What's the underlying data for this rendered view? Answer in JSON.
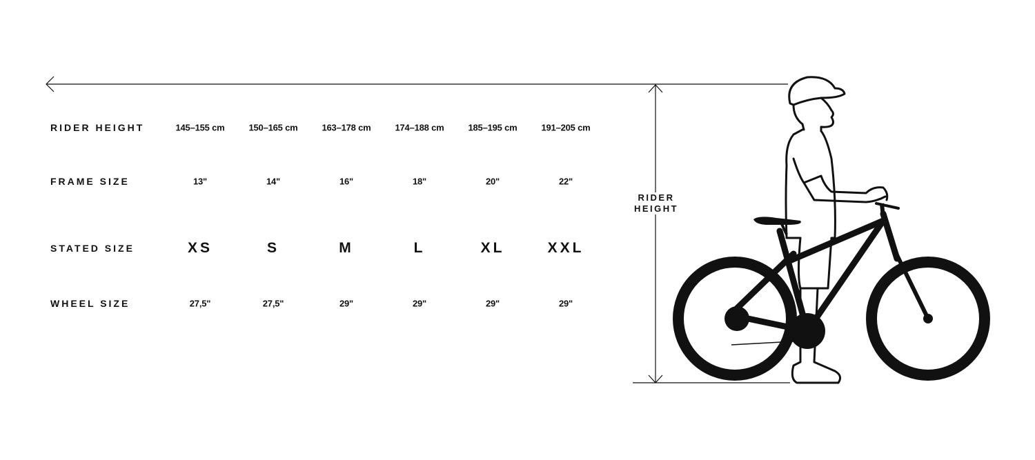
{
  "rows": [
    {
      "label": "RIDER HEIGHT",
      "values": [
        "145–155 cm",
        "150–165 cm",
        "163–178 cm",
        "174–188 cm",
        "185–195 cm",
        "191–205 cm"
      ]
    },
    {
      "label": "FRAME SIZE",
      "values": [
        "13\"",
        "14\"",
        "16\"",
        "18\"",
        "20\"",
        "22\""
      ]
    },
    {
      "label": "STATED SIZE",
      "values": [
        "XS",
        "S",
        "M",
        "L",
        "XL",
        "XXL"
      ]
    },
    {
      "label": "WHEEL SIZE",
      "values": [
        "27,5\"",
        "27,5\"",
        "29\"",
        "29\"",
        "29\"",
        "29\""
      ]
    }
  ],
  "illustration": {
    "measure_label_line1": "RIDER",
    "measure_label_line2": "HEIGHT"
  },
  "colors": {
    "ink": "#111111",
    "background": "#ffffff"
  }
}
